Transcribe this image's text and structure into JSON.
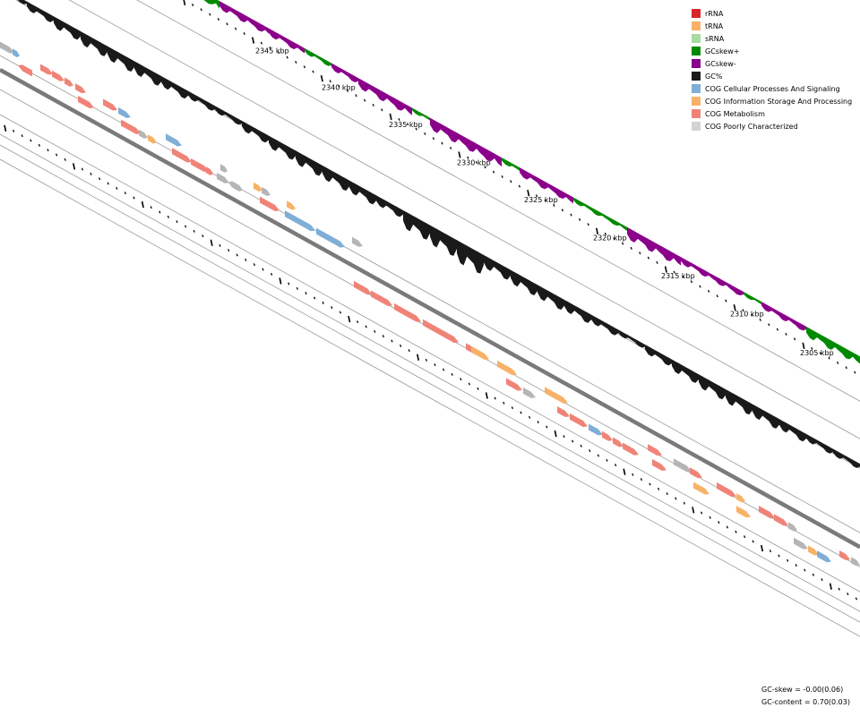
{
  "tick_labels": [
    "2345 kbp",
    "2340 kbp",
    "2335 kbp",
    "2330 kbp",
    "2325 kbp",
    "2320 kbp",
    "2315 kbp",
    "2310 kbp",
    "2305 kbp"
  ],
  "legend": [
    {
      "label": "rRNA",
      "color": "#d62728"
    },
    {
      "label": "tRNA",
      "color": "#f7b267"
    },
    {
      "label": "sRNA",
      "color": "#a6dba0"
    },
    {
      "label": "GCskew+",
      "color": "#008a00"
    },
    {
      "label": "GCskew-",
      "color": "#8b008b"
    },
    {
      "label": "GC%",
      "color": "#1a1a1a"
    },
    {
      "label": "COG Cellular Processes And Signaling",
      "color": "#7faed6"
    },
    {
      "label": "COG Information Storage And Processing",
      "color": "#f7b267"
    },
    {
      "label": "COG Metabolism",
      "color": "#f08378"
    },
    {
      "label": "COG Poorly Characterized",
      "color": "#d3d3d3"
    }
  ],
  "stats": {
    "gc_skew": "GC-skew = -0.00(0.06)",
    "gc_content": "GC-content = 0.70(0.03)"
  }
}
